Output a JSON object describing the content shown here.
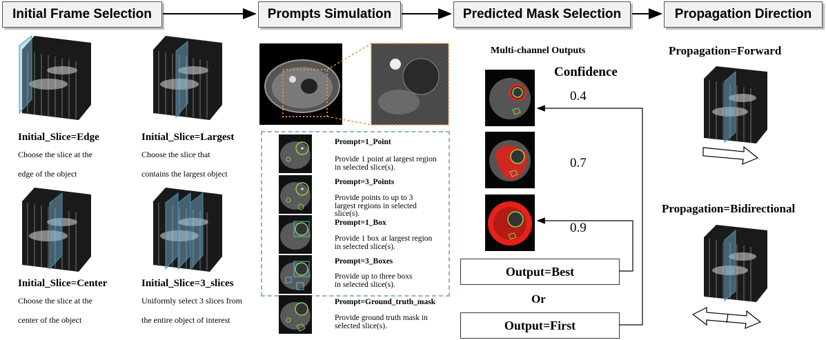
{
  "headers": {
    "initial_frame": "Initial Frame Selection",
    "prompts_simulation": "Prompts Simulation",
    "predicted_mask": "Predicted Mask Selection",
    "propagation_direction": "Propagation Direction"
  },
  "initial_slices": [
    {
      "title": "Initial_Slice=Edge",
      "line1": "Choose the slice at the",
      "line2": "edge of the object"
    },
    {
      "title": "Initial_Slice=Largest",
      "line1": "Choose the slice that",
      "line2": "contains the largest object"
    },
    {
      "title": "Initial_Slice=Center",
      "line1": "Choose the slice at the",
      "line2": "center of the object"
    },
    {
      "title": "Initial_Slice=3_slices",
      "line1": "Uniformly select 3 slices from",
      "line2": "the entire object of interest"
    }
  ],
  "prompts": [
    {
      "title": "Prompt=1_Point",
      "desc": "Provide 1 point at largest region in selected slice(s)."
    },
    {
      "title": "Prompt=3_Points",
      "desc": "Provide points to up to 3 largest regions in selected slice(s)."
    },
    {
      "title": "Prompt=1_Box",
      "desc": "Provide 1 box at largest region in selected slice(s)."
    },
    {
      "title": "Prompt=3_Boxes",
      "desc": "Provide up to three boxs in selected slice(s)."
    },
    {
      "title": "Prompt=Ground_truth_mask",
      "desc": "Provide ground truth mask in selected slice(s)."
    }
  ],
  "mask": {
    "multi_channel": "Multi-channel Outputs",
    "confidence_label": "Confidence",
    "confidences": [
      "0.4",
      "0.7",
      "0.9"
    ],
    "output_best": "Output=Best",
    "or": "Or",
    "output_first": "Output=First"
  },
  "propagation": {
    "forward": "Propagation=Forward",
    "bidirectional": "Propagation=Bidirectional"
  },
  "colors": {
    "header_bg": "#f2f2f2",
    "dashed_box": "#8fb0d6",
    "dotted_orange": "#e8913a",
    "mask_red": "#e8201a",
    "mask_green": "#8fd14f",
    "slice_blue": "#7ab8d8"
  }
}
